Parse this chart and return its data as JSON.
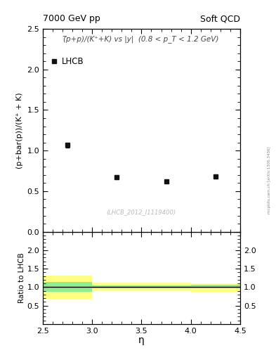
{
  "title_left": "7000 GeV pp",
  "title_right": "Soft QCD",
  "annotation": "(̅p+p)/(K⁺+K) vs |y|  (0.8 < p_T < 1.2 GeV)",
  "ref_label": "(LHCB_2012_I1119400)",
  "legend_label": "LHCB",
  "ylabel_main": "(p+bar(p))/(K⁺ + K)",
  "ylabel_ratio": "Ratio to LHCB",
  "xlabel": "η",
  "xlim": [
    2.5,
    4.5
  ],
  "ylim_main": [
    0.0,
    2.5
  ],
  "ylim_ratio": [
    0.0,
    2.5
  ],
  "data_x": [
    2.75,
    3.25,
    3.75,
    4.25
  ],
  "data_y": [
    1.07,
    0.67,
    0.62,
    0.68
  ],
  "data_yerr": [
    0.03,
    0.025,
    0.02,
    0.025
  ],
  "ratio_bands": [
    {
      "x": [
        2.5,
        3.0
      ],
      "green": [
        0.87,
        1.13
      ],
      "yellow": [
        0.68,
        1.32
      ]
    },
    {
      "x": [
        3.0,
        4.0
      ],
      "green": [
        0.96,
        1.05
      ],
      "yellow": [
        0.9,
        1.12
      ]
    },
    {
      "x": [
        4.0,
        4.5
      ],
      "green": [
        0.96,
        1.06
      ],
      "yellow": [
        0.88,
        1.1
      ]
    }
  ],
  "color_green": "#90ee90",
  "color_yellow": "#ffff80",
  "color_data": "#111111",
  "watermark": "mcplots.cern.ch [arXiv:1306.3436]",
  "yticks_main": [
    0.0,
    0.5,
    1.0,
    1.5,
    2.0,
    2.5
  ],
  "yticks_ratio": [
    0.5,
    1.0,
    1.5,
    2.0
  ],
  "xticks": [
    2.5,
    3.0,
    3.5,
    4.0,
    4.5
  ]
}
